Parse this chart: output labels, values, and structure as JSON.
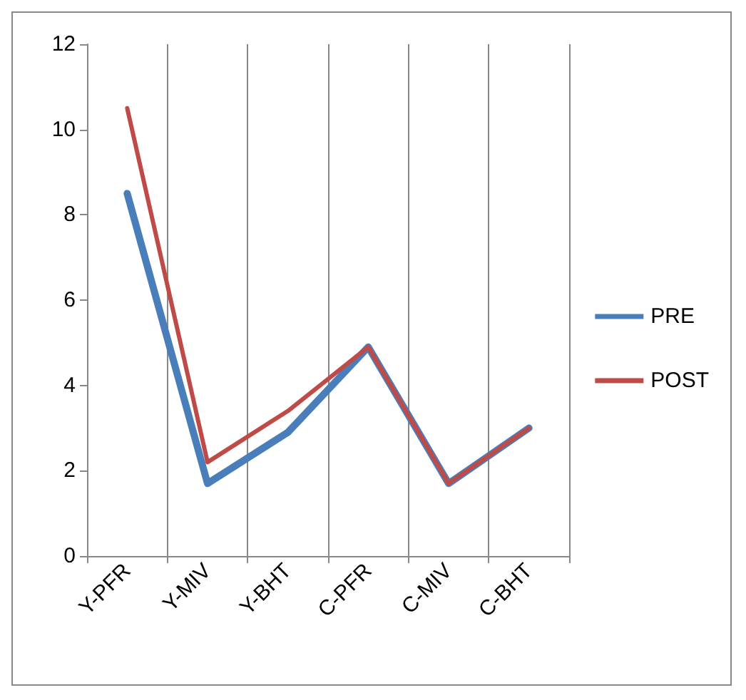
{
  "chart_data": {
    "type": "line",
    "categories": [
      "Y-PFR",
      "Y-MIV",
      "Y-BHT",
      "C-PFR",
      "C-MIV",
      "C-BHT"
    ],
    "series": [
      {
        "name": "PRE",
        "color": "#4a7ebb",
        "values": [
          8.5,
          1.7,
          2.9,
          4.9,
          1.7,
          3.0
        ]
      },
      {
        "name": "POST",
        "color": "#be4b48",
        "values": [
          10.5,
          2.2,
          3.4,
          4.9,
          1.7,
          3.0
        ]
      }
    ],
    "ylim": [
      0,
      12
    ],
    "yticks": [
      0,
      2,
      4,
      6,
      8,
      10,
      12
    ],
    "grid": "x",
    "legend": "right",
    "marker": "none",
    "line_style": "solid"
  }
}
